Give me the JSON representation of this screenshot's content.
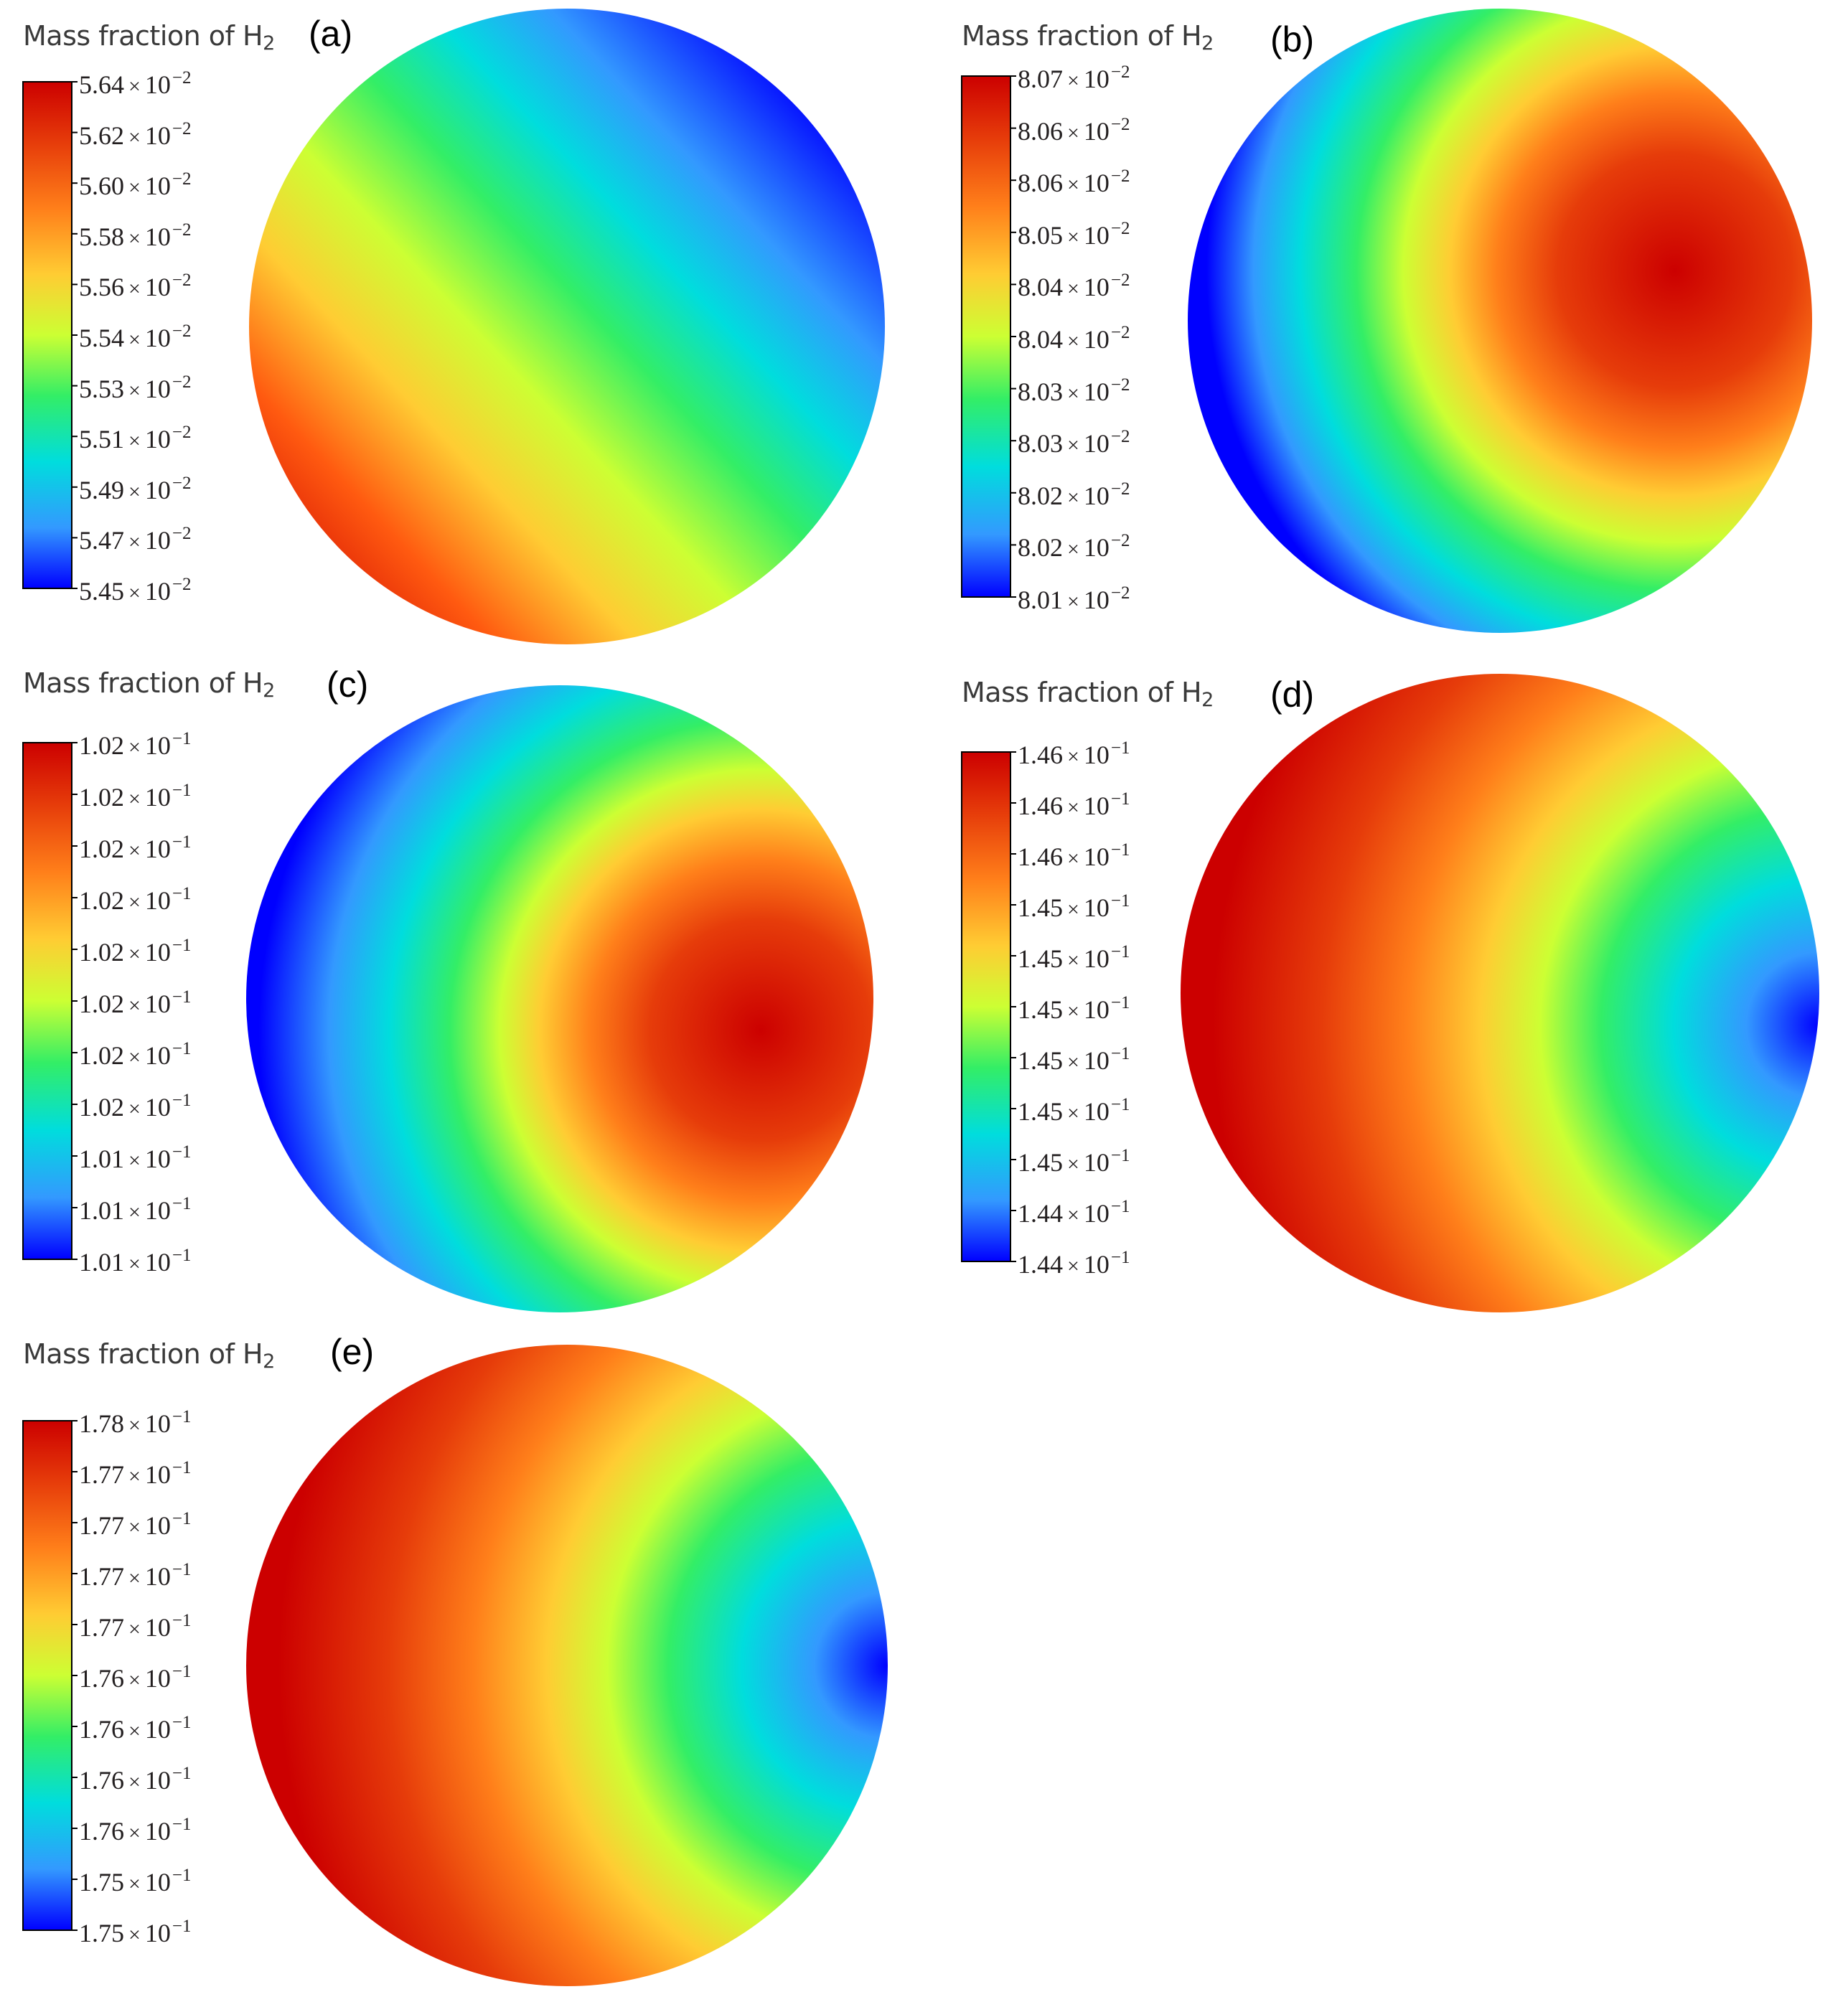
{
  "figure": {
    "panels": [
      {
        "label": "(a)",
        "legend_title": {
          "text": "Mass fraction of H",
          "subscript": "2"
        },
        "tick_labels": [
          "5.64",
          "5.62",
          "5.60",
          "5.58",
          "5.56",
          "5.54",
          "5.53",
          "5.51",
          "5.49",
          "5.47",
          "5.45"
        ],
        "tick_exponent": "−2",
        "tick_times": "×",
        "tick_base": "10"
      },
      {
        "label": "(b)",
        "legend_title": {
          "text": "Mass fraction of H",
          "subscript": "2"
        },
        "tick_labels": [
          "8.07",
          "8.06",
          "8.06",
          "8.05",
          "8.04",
          "8.04",
          "8.03",
          "8.03",
          "8.02",
          "8.02",
          "8.01"
        ],
        "tick_exponent": "−2",
        "tick_times": "×",
        "tick_base": "10"
      },
      {
        "label": "(c)",
        "legend_title": {
          "text": "Mass fraction of H",
          "subscript": "2"
        },
        "tick_labels": [
          "1.02",
          "1.02",
          "1.02",
          "1.02",
          "1.02",
          "1.02",
          "1.02",
          "1.02",
          "1.01",
          "1.01",
          "1.01"
        ],
        "tick_exponent": "−1",
        "tick_times": "×",
        "tick_base": "10"
      },
      {
        "label": "(d)",
        "legend_title": {
          "text": "Mass fraction of H",
          "subscript": "2"
        },
        "tick_labels": [
          "1.46",
          "1.46",
          "1.46",
          "1.45",
          "1.45",
          "1.45",
          "1.45",
          "1.45",
          "1.45",
          "1.44",
          "1.44"
        ],
        "tick_exponent": "−1",
        "tick_times": "×",
        "tick_base": "10"
      },
      {
        "label": "(e)",
        "legend_title": {
          "text": "Mass fraction of H",
          "subscript": "2"
        },
        "tick_labels": [
          "1.78",
          "1.77",
          "1.77",
          "1.77",
          "1.77",
          "1.76",
          "1.76",
          "1.76",
          "1.76",
          "1.75",
          "1.75"
        ],
        "tick_exponent": "−1",
        "tick_times": "×",
        "tick_base": "10"
      }
    ],
    "colormap": [
      "#0000ff",
      "#3399ff",
      "#00dddd",
      "#33ee66",
      "#ccff33",
      "#ffcc33",
      "#ff7f1a",
      "#e63c0a",
      "#cc0000"
    ]
  }
}
